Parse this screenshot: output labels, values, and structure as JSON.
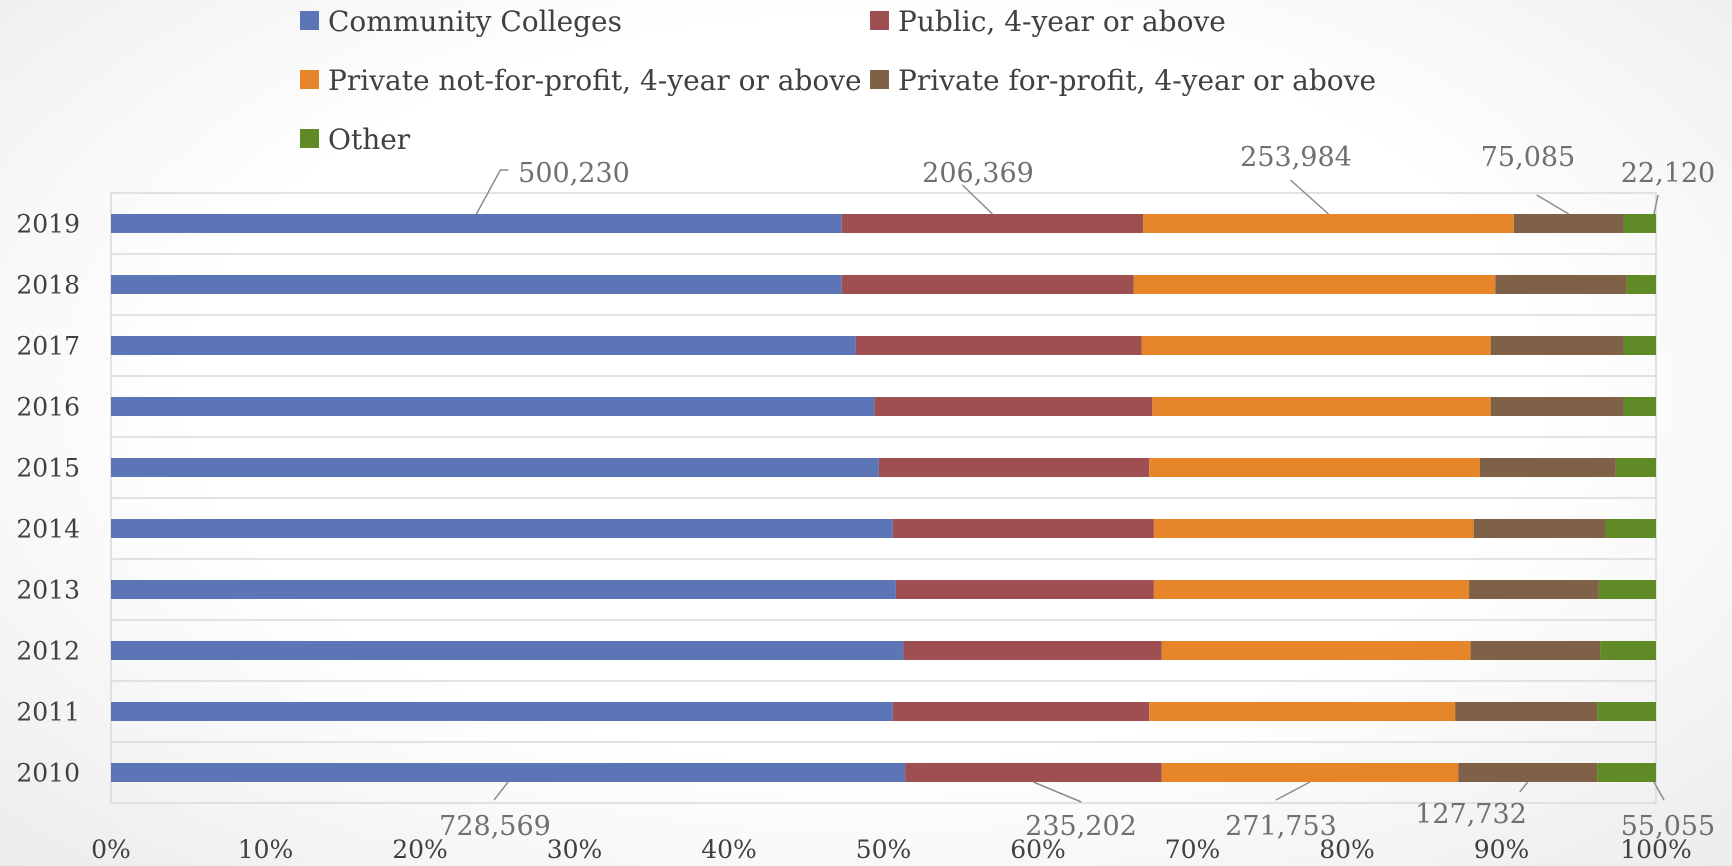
{
  "chart_data": {
    "type": "bar",
    "orientation": "horizontal",
    "stacked": "percent",
    "categories": [
      "2019",
      "2018",
      "2017",
      "2016",
      "2015",
      "2014",
      "2013",
      "2012",
      "2011",
      "2010"
    ],
    "series": [
      {
        "name": "Community Colleges",
        "color": "#5b75b6",
        "values": [
          47.3,
          47.3,
          48.2,
          49.4,
          49.7,
          50.6,
          50.8,
          51.3,
          50.6,
          51.4
        ]
      },
      {
        "name": "Public, 4-year or above",
        "color": "#9e4f52",
        "values": [
          19.5,
          18.9,
          18.5,
          18.0,
          17.5,
          16.9,
          16.7,
          16.7,
          16.6,
          16.6
        ]
      },
      {
        "name": "Private not-for-profit, 4-year or above",
        "color": "#e6852a",
        "values": [
          24.0,
          23.4,
          22.6,
          21.9,
          21.4,
          20.7,
          20.4,
          20.0,
          19.8,
          19.2
        ]
      },
      {
        "name": "Private for-profit, 4-year or above",
        "color": "#7f6148",
        "values": [
          7.1,
          8.5,
          8.6,
          8.6,
          8.8,
          8.5,
          8.4,
          8.4,
          9.2,
          9.0
        ]
      },
      {
        "name": "Other",
        "color": "#5f8a26",
        "values": [
          2.1,
          1.9,
          2.1,
          2.1,
          2.6,
          3.3,
          3.7,
          3.6,
          3.8,
          3.8
        ]
      }
    ],
    "xlim": [
      0,
      100
    ],
    "xticks": [
      "0%",
      "10%",
      "20%",
      "30%",
      "40%",
      "50%",
      "60%",
      "70%",
      "80%",
      "90%",
      "100%"
    ],
    "legend_position": "top",
    "grid": true,
    "data_labels": {
      "2019": [
        "500,230",
        "206,369",
        "253,984",
        "75,085",
        "22,120"
      ],
      "2010": [
        "728,569",
        "235,202",
        "271,753",
        "127,732",
        "55,055"
      ]
    }
  }
}
